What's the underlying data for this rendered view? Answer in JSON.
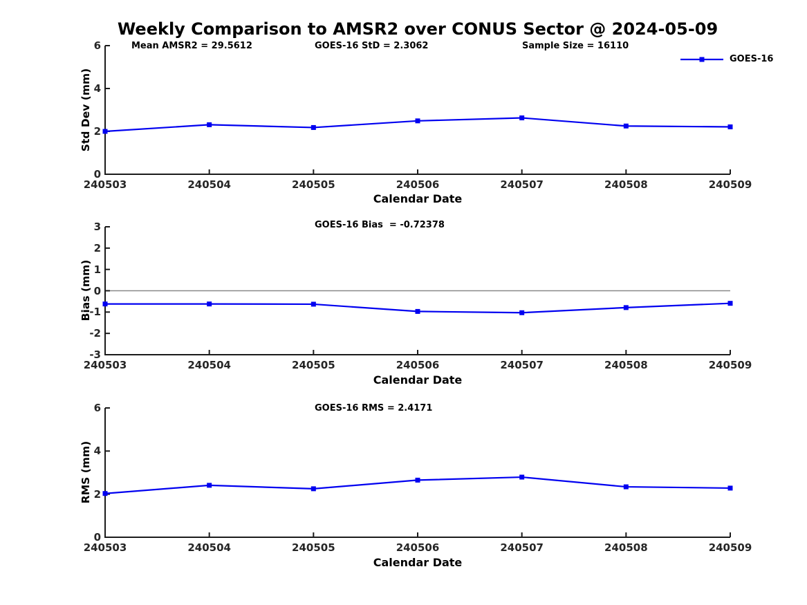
{
  "figure": {
    "title": "Weekly Comparison to AMSR2 over CONUS Sector @ 2024-05-09"
  },
  "colors": {
    "series": "#0000f0",
    "axis": "#1a1a1a",
    "tick_text": "#262626",
    "zero_line": "#888888"
  },
  "chart_data": [
    {
      "type": "line",
      "title": "Weekly Comparison to AMSR2 over CONUS Sector @ 2024-05-09",
      "xlabel": "Calendar Date",
      "ylabel": "Std Dev (mm)",
      "categories": [
        "240503",
        "240504",
        "240505",
        "240506",
        "240507",
        "240508",
        "240509"
      ],
      "series": [
        {
          "name": "GOES-16",
          "values": [
            2.0,
            2.31,
            2.18,
            2.49,
            2.63,
            2.25,
            2.21
          ]
        }
      ],
      "ylim": [
        0,
        6
      ],
      "yticks": [
        0,
        2,
        4,
        6
      ],
      "grid": false,
      "legend_position": "top-right",
      "annotations": [
        "Mean AMSR2 = 29.5612",
        "GOES-16 StD = 2.3062",
        "Sample Size = 16110"
      ]
    },
    {
      "type": "line",
      "xlabel": "Calendar Date",
      "ylabel": "Bias (mm)",
      "categories": [
        "240503",
        "240504",
        "240505",
        "240506",
        "240507",
        "240508",
        "240509"
      ],
      "series": [
        {
          "name": "GOES-16",
          "values": [
            -0.62,
            -0.62,
            -0.63,
            -0.97,
            -1.03,
            -0.79,
            -0.59
          ]
        }
      ],
      "ylim": [
        -3,
        3
      ],
      "yticks": [
        3,
        2,
        1,
        0,
        -1,
        -2,
        -3
      ],
      "zero_line": true,
      "grid": false,
      "annotations": [
        "GOES-16 Bias  = -0.72378"
      ]
    },
    {
      "type": "line",
      "xlabel": "Calendar Date",
      "ylabel": "RMS (mm)",
      "categories": [
        "240503",
        "240504",
        "240505",
        "240506",
        "240507",
        "240508",
        "240509"
      ],
      "series": [
        {
          "name": "GOES-16",
          "values": [
            2.03,
            2.41,
            2.25,
            2.65,
            2.79,
            2.34,
            2.28
          ]
        }
      ],
      "ylim": [
        0,
        6
      ],
      "yticks": [
        0,
        2,
        4,
        6
      ],
      "grid": false,
      "annotations": [
        "GOES-16 RMS = 2.4171"
      ]
    }
  ]
}
